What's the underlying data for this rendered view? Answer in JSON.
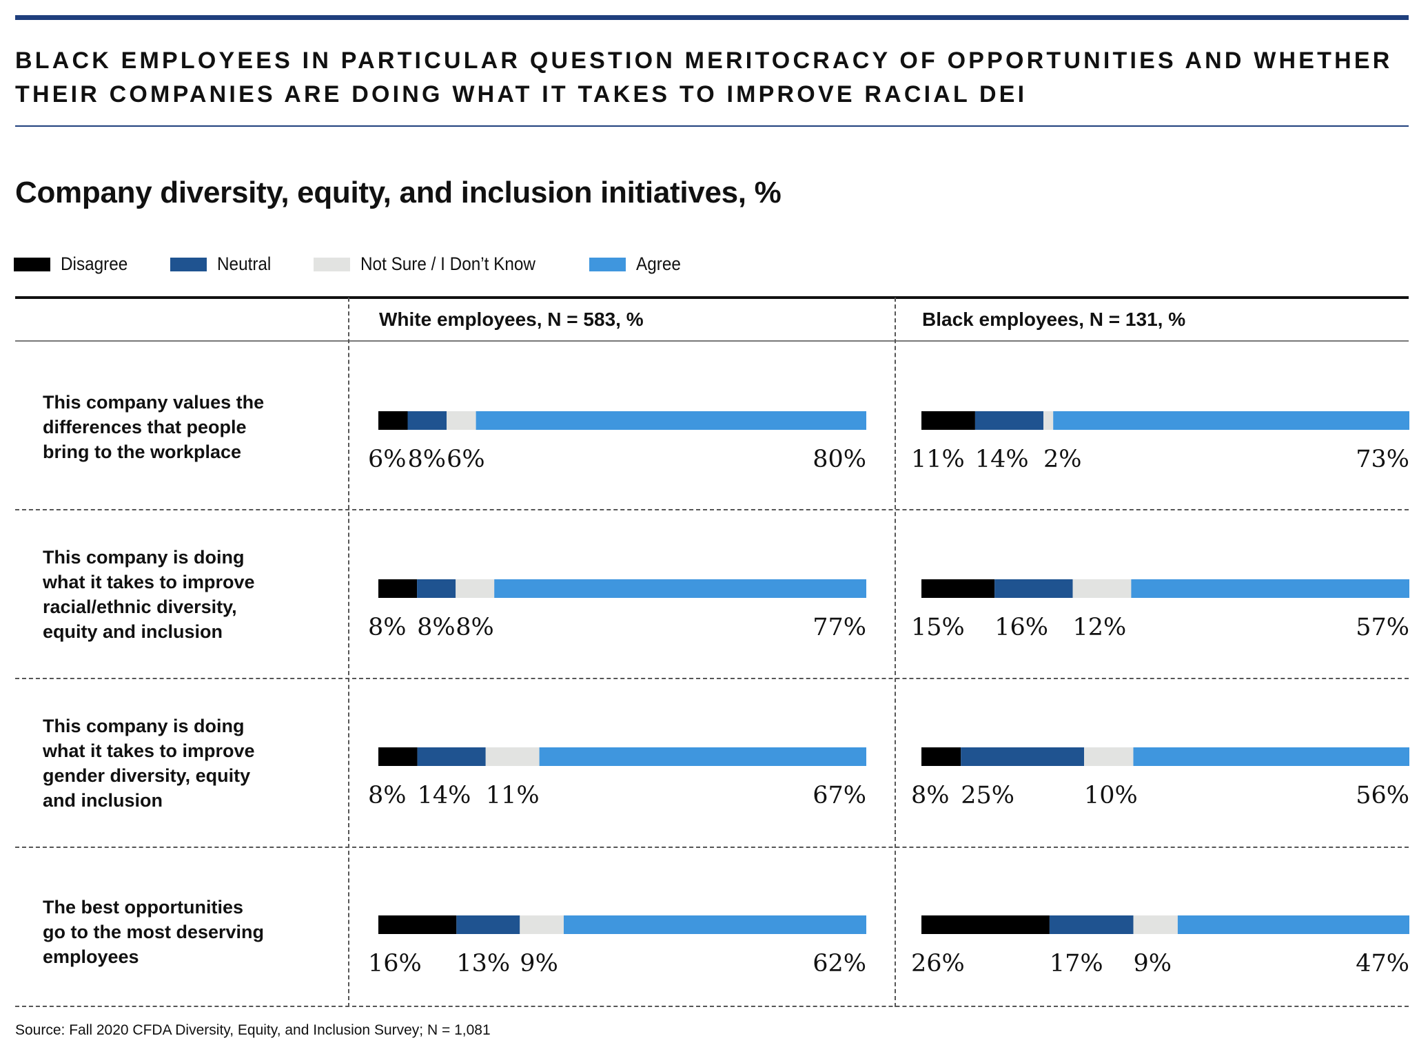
{
  "headline": {
    "line1": "BLACK EMPLOYEES IN PARTICULAR QUESTION MERITOCRACY OF OPPORTUNITIES AND WHETHER",
    "line2": "THEIR COMPANIES ARE DOING WHAT IT TAKES TO IMPROVE RACIAL DEI"
  },
  "legend": [
    {
      "label": "Disagree",
      "color": "#000000"
    },
    {
      "label": "Neutral",
      "color": "#1f5390"
    },
    {
      "label": "Not Sure / I Don’t Know",
      "color": "#e2e3e1"
    },
    {
      "label": "Agree",
      "color": "#3f96de"
    }
  ],
  "columns": [
    {
      "header": "White employees, N = 583, %"
    },
    {
      "header": "Black employees, N = 131, %"
    }
  ],
  "rows": [
    {
      "label_lines": [
        "This company values the",
        "differences that people",
        "bring to the workplace"
      ]
    },
    {
      "label_lines": [
        "This company is doing",
        "what it takes to improve",
        "racial/ethnic diversity,",
        "equity and inclusion"
      ]
    },
    {
      "label_lines": [
        "This company is doing",
        "what it takes to improve",
        "gender diversity, equity",
        "and inclusion"
      ]
    },
    {
      "label_lines": [
        "The best opportunities",
        "go to the most deserving",
        "employees"
      ]
    }
  ],
  "source": "Source: Fall 2020 CFDA Diversity, Equity, and Inclusion Survey; N = 1,081",
  "chart_data": {
    "type": "bar",
    "orientation": "horizontal",
    "stacked": true,
    "unit": "%",
    "title": "Company diversity, equity, and inclusion initiatives, %",
    "categories": [
      "This company values the differences that people bring to the workplace",
      "This company is doing what it takes to improve racial/ethnic diversity, equity and inclusion",
      "This company is doing what it takes to improve gender diversity, equity and inclusion",
      "The best opportunities go to the most deserving employees"
    ],
    "panels": [
      {
        "name": "White employees, N = 583, %",
        "series": [
          {
            "name": "Disagree",
            "values": [
              6,
              8,
              8,
              16
            ]
          },
          {
            "name": "Neutral",
            "values": [
              8,
              8,
              14,
              13
            ]
          },
          {
            "name": "Not Sure / I Don’t Know",
            "values": [
              6,
              8,
              11,
              9
            ]
          },
          {
            "name": "Agree",
            "values": [
              80,
              77,
              67,
              62
            ]
          }
        ]
      },
      {
        "name": "Black employees, N = 131, %",
        "series": [
          {
            "name": "Disagree",
            "values": [
              11,
              15,
              8,
              26
            ]
          },
          {
            "name": "Neutral",
            "values": [
              14,
              16,
              25,
              17
            ]
          },
          {
            "name": "Not Sure / I Don’t Know",
            "values": [
              2,
              12,
              10,
              9
            ]
          },
          {
            "name": "Agree",
            "values": [
              73,
              57,
              56,
              47
            ]
          }
        ]
      }
    ],
    "legend_position": "top-left"
  }
}
